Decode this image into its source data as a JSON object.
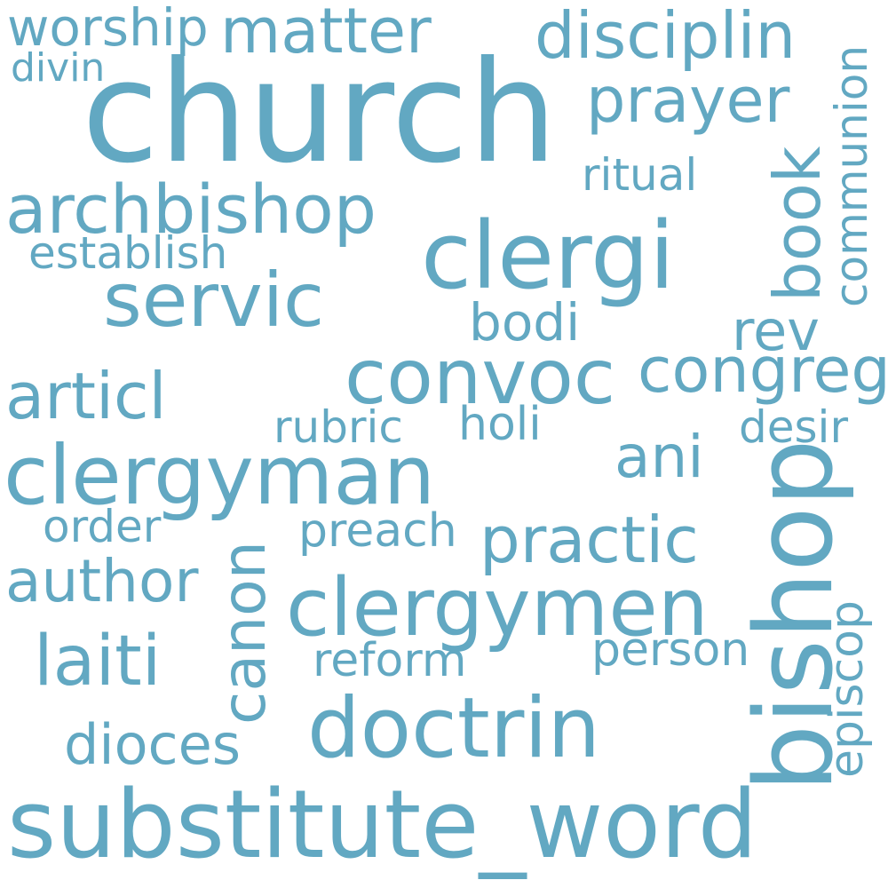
{
  "color": "#62a8c2",
  "words": [
    "worship",
    "matter",
    "disciplin",
    "divin",
    "church",
    "prayer",
    "communion",
    "ritual",
    "book",
    "archbishop",
    "clergi",
    "establish",
    "servic",
    "bodi",
    "rev",
    "convoc",
    "congreg",
    "articl",
    "rubric",
    "holi",
    "desir",
    "clergyman",
    "ani",
    "bishop",
    "order",
    "preach",
    "practic",
    "author",
    "canon",
    "clergymen",
    "episcop",
    "laiti",
    "reform",
    "person",
    "dioces",
    "doctrin",
    "substitute_word"
  ]
}
